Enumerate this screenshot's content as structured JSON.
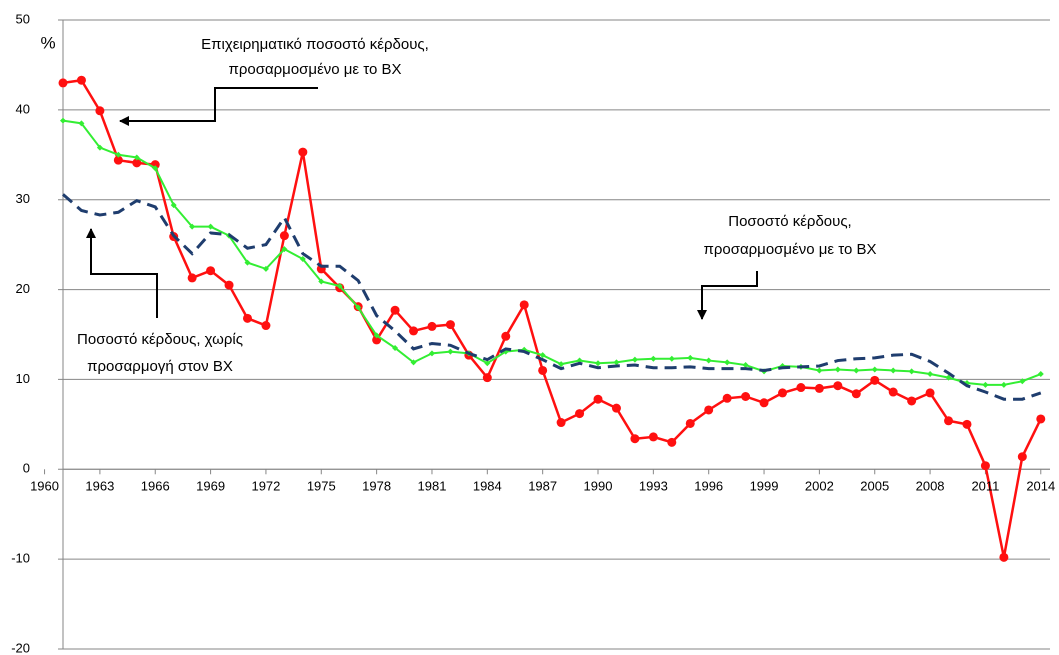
{
  "chart_data": {
    "type": "line",
    "y_unit": "%",
    "x": [
      1961,
      1962,
      1963,
      1964,
      1965,
      1966,
      1967,
      1968,
      1969,
      1970,
      1971,
      1972,
      1973,
      1974,
      1975,
      1976,
      1977,
      1978,
      1979,
      1980,
      1981,
      1982,
      1983,
      1984,
      1985,
      1986,
      1987,
      1988,
      1989,
      1990,
      1991,
      1992,
      1993,
      1994,
      1995,
      1996,
      1997,
      1998,
      1999,
      2000,
      2001,
      2002,
      2003,
      2004,
      2005,
      2006,
      2007,
      2008,
      2009,
      2010,
      2011,
      2012,
      2013,
      2014
    ],
    "series": [
      {
        "color": "#ff1010",
        "marker": "circle",
        "values": [
          43.0,
          43.3,
          39.9,
          34.4,
          34.1,
          33.9,
          25.9,
          21.3,
          22.1,
          20.5,
          16.8,
          16.0,
          26.0,
          35.3,
          22.3,
          20.2,
          18.1,
          14.4,
          17.7,
          15.4,
          15.9,
          16.1,
          12.7,
          10.2,
          14.8,
          18.3,
          11.0,
          5.2,
          6.2,
          7.8,
          6.8,
          3.4,
          3.6,
          3.0,
          5.1,
          6.6,
          7.9,
          8.1,
          7.4,
          8.5,
          9.1,
          9.0,
          9.3,
          8.4,
          9.9,
          8.6,
          7.6,
          8.5,
          5.4,
          5.0,
          0.4,
          -9.8,
          1.4,
          5.6
        ]
      },
      {
        "color": "#33ee33",
        "marker": "diamond",
        "values": [
          38.8,
          38.5,
          35.8,
          35.0,
          34.7,
          33.5,
          29.4,
          27.0,
          27.0,
          26.0,
          23.0,
          22.3,
          24.5,
          23.4,
          20.9,
          20.4,
          18.0,
          14.9,
          13.5,
          11.9,
          12.9,
          13.1,
          12.9,
          11.8,
          13.1,
          13.3,
          12.7,
          11.7,
          12.1,
          11.8,
          11.9,
          12.2,
          12.3,
          12.3,
          12.4,
          12.1,
          11.9,
          11.6,
          10.9,
          11.5,
          11.4,
          11.0,
          11.1,
          11.0,
          11.1,
          11.0,
          10.9,
          10.6,
          10.2,
          9.6,
          9.4,
          9.4,
          9.8,
          10.6
        ]
      },
      {
        "color": "#1f3d6e",
        "dashed": true,
        "values": [
          30.6,
          28.8,
          28.3,
          28.6,
          29.9,
          29.2,
          26.0,
          24.0,
          26.3,
          26.1,
          24.6,
          25.0,
          28.0,
          24.0,
          22.6,
          22.6,
          21.0,
          17.1,
          15.4,
          13.4,
          14.0,
          13.8,
          12.9,
          12.2,
          13.4,
          13.1,
          12.2,
          11.2,
          11.8,
          11.3,
          11.5,
          11.6,
          11.3,
          11.3,
          11.4,
          11.2,
          11.2,
          11.2,
          11.0,
          11.3,
          11.4,
          11.5,
          12.1,
          12.3,
          12.4,
          12.7,
          12.8,
          12.0,
          10.7,
          9.3,
          8.6,
          7.8,
          7.8,
          8.5
        ]
      }
    ],
    "xlim": [
      1961,
      2014.5
    ],
    "xticks": [
      1960,
      1963,
      1966,
      1969,
      1972,
      1975,
      1978,
      1981,
      1984,
      1987,
      1990,
      1993,
      1996,
      1999,
      2002,
      2005,
      2008,
      2011,
      2014
    ],
    "ylim": [
      -20,
      50
    ],
    "yticks": [
      -20,
      -10,
      0,
      10,
      20,
      30,
      40,
      50
    ],
    "grid": true,
    "annotations": [
      [
        "Επιχειρηματικό ποσοστό κέρδους,",
        "προσαρμοσμένο με το BX"
      ],
      [
        "Ποσοστό κέρδους,",
        "προσαρμοσμένο με το BX"
      ],
      [
        "Ποσοστό κέρδους, χωρίς",
        "προσαρμογή στον BX"
      ]
    ]
  }
}
